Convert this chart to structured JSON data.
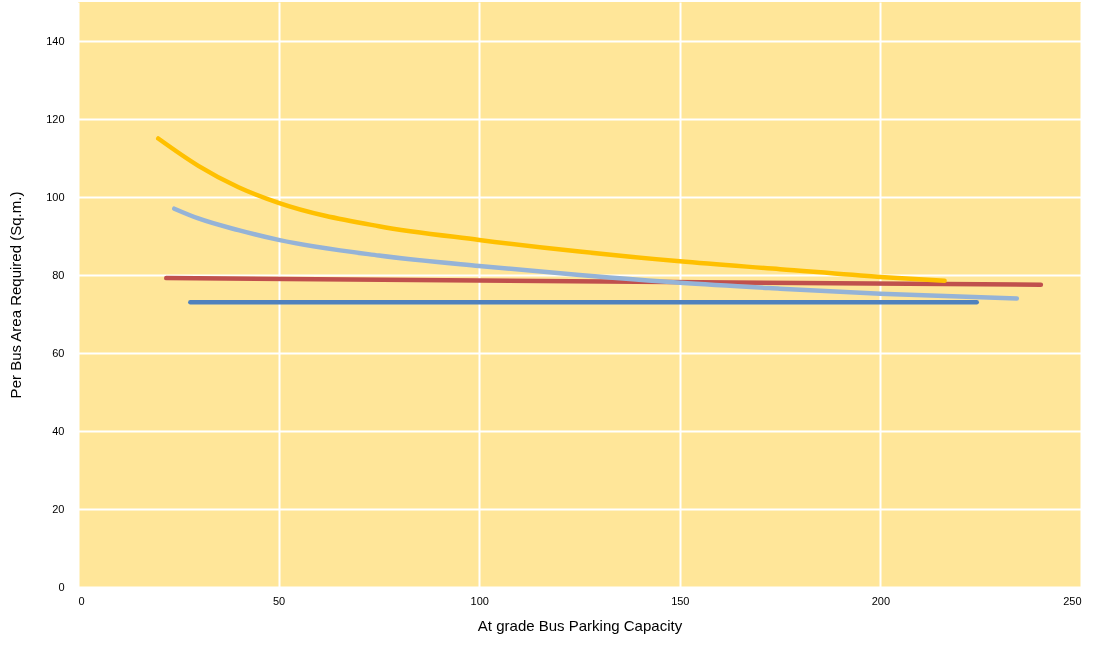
{
  "chart_data": {
    "type": "line",
    "xlabel": "At grade Bus Parking Capacity",
    "ylabel": "Per Bus Area Required (Sq.m.)",
    "xlim": [
      0,
      250
    ],
    "xticks": [
      0,
      50,
      100,
      150,
      200,
      250
    ],
    "ylim": [
      0,
      150
    ],
    "yticks": [
      0,
      20,
      40,
      60,
      80,
      100,
      120,
      140
    ],
    "grid": true,
    "legend": false,
    "marker": "none",
    "line_style": "solid",
    "series": [
      {
        "color": "#4f81bd",
        "x": [
          28,
          224
        ],
        "values": [
          73,
          73
        ]
      },
      {
        "color": "#c0504d",
        "x": [
          22,
          240
        ],
        "values": [
          79.2,
          77.5
        ]
      },
      {
        "color": "#ffc000",
        "x": [
          20,
          30,
          40,
          50,
          75,
          100,
          125,
          150,
          175,
          200,
          216
        ],
        "values": [
          115,
          108,
          102.5,
          98.5,
          92.5,
          89,
          86,
          83.5,
          81.5,
          79.5,
          78.5
        ]
      },
      {
        "color": "#95b3d7",
        "x": [
          24,
          30,
          40,
          50,
          75,
          100,
          125,
          150,
          175,
          200,
          234
        ],
        "values": [
          97,
          94.5,
          91.5,
          89,
          85,
          82.3,
          80,
          78,
          76.5,
          75.2,
          74
        ]
      }
    ]
  }
}
